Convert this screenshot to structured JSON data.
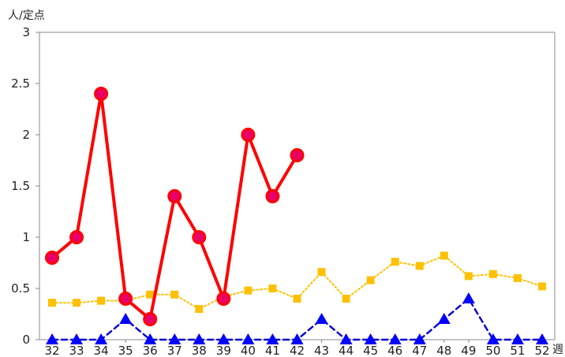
{
  "chart_data": {
    "type": "line",
    "ylabel": "人/定点",
    "xlabel": "週",
    "x": [
      32,
      33,
      34,
      35,
      36,
      37,
      38,
      39,
      40,
      41,
      42,
      43,
      44,
      45,
      46,
      47,
      48,
      49,
      50,
      51,
      52
    ],
    "x_tick_labels": [
      "32",
      "33",
      "34",
      "35",
      "36",
      "37",
      "38",
      "39",
      "40",
      "41",
      "42",
      "43",
      "44",
      "45",
      "46",
      "47",
      "48",
      "49",
      "50",
      "51",
      "52"
    ],
    "ylim": [
      0,
      3
    ],
    "y_ticks": [
      0,
      0.5,
      1,
      1.5,
      2,
      2.5,
      3
    ],
    "y_tick_labels": [
      "0",
      "0.5",
      "1",
      "1.5",
      "2",
      "2.5",
      "3"
    ],
    "grid": false,
    "legend": "none",
    "series": [
      {
        "values": [
          0.8,
          1.0,
          2.4,
          0.4,
          0.2,
          1.4,
          1.0,
          0.4,
          2.0,
          1.4,
          1.8,
          null,
          null,
          null,
          null,
          null,
          null,
          null,
          null,
          null,
          null
        ],
        "color": "#ff0000",
        "marker_fill": "#e8006a",
        "line_style": "solid",
        "marker": "circle"
      },
      {
        "values": [
          0.36,
          0.36,
          0.38,
          0.38,
          0.44,
          0.44,
          0.3,
          0.42,
          0.48,
          0.5,
          0.4,
          0.66,
          0.4,
          0.58,
          0.76,
          0.72,
          0.82,
          0.62,
          0.64,
          0.6,
          0.52
        ],
        "color": "#ffc000",
        "marker_fill": "#ffc000",
        "line_style": "dotted",
        "marker": "square"
      },
      {
        "values": [
          0,
          0,
          0,
          0.2,
          0,
          0,
          0,
          0,
          0,
          0,
          0,
          0.2,
          0,
          0,
          0,
          0,
          0.2,
          0.4,
          0,
          0,
          0
        ],
        "color": "#0000cc",
        "marker_fill": "#0000ff",
        "line_style": "dashed",
        "marker": "triangle"
      }
    ]
  }
}
